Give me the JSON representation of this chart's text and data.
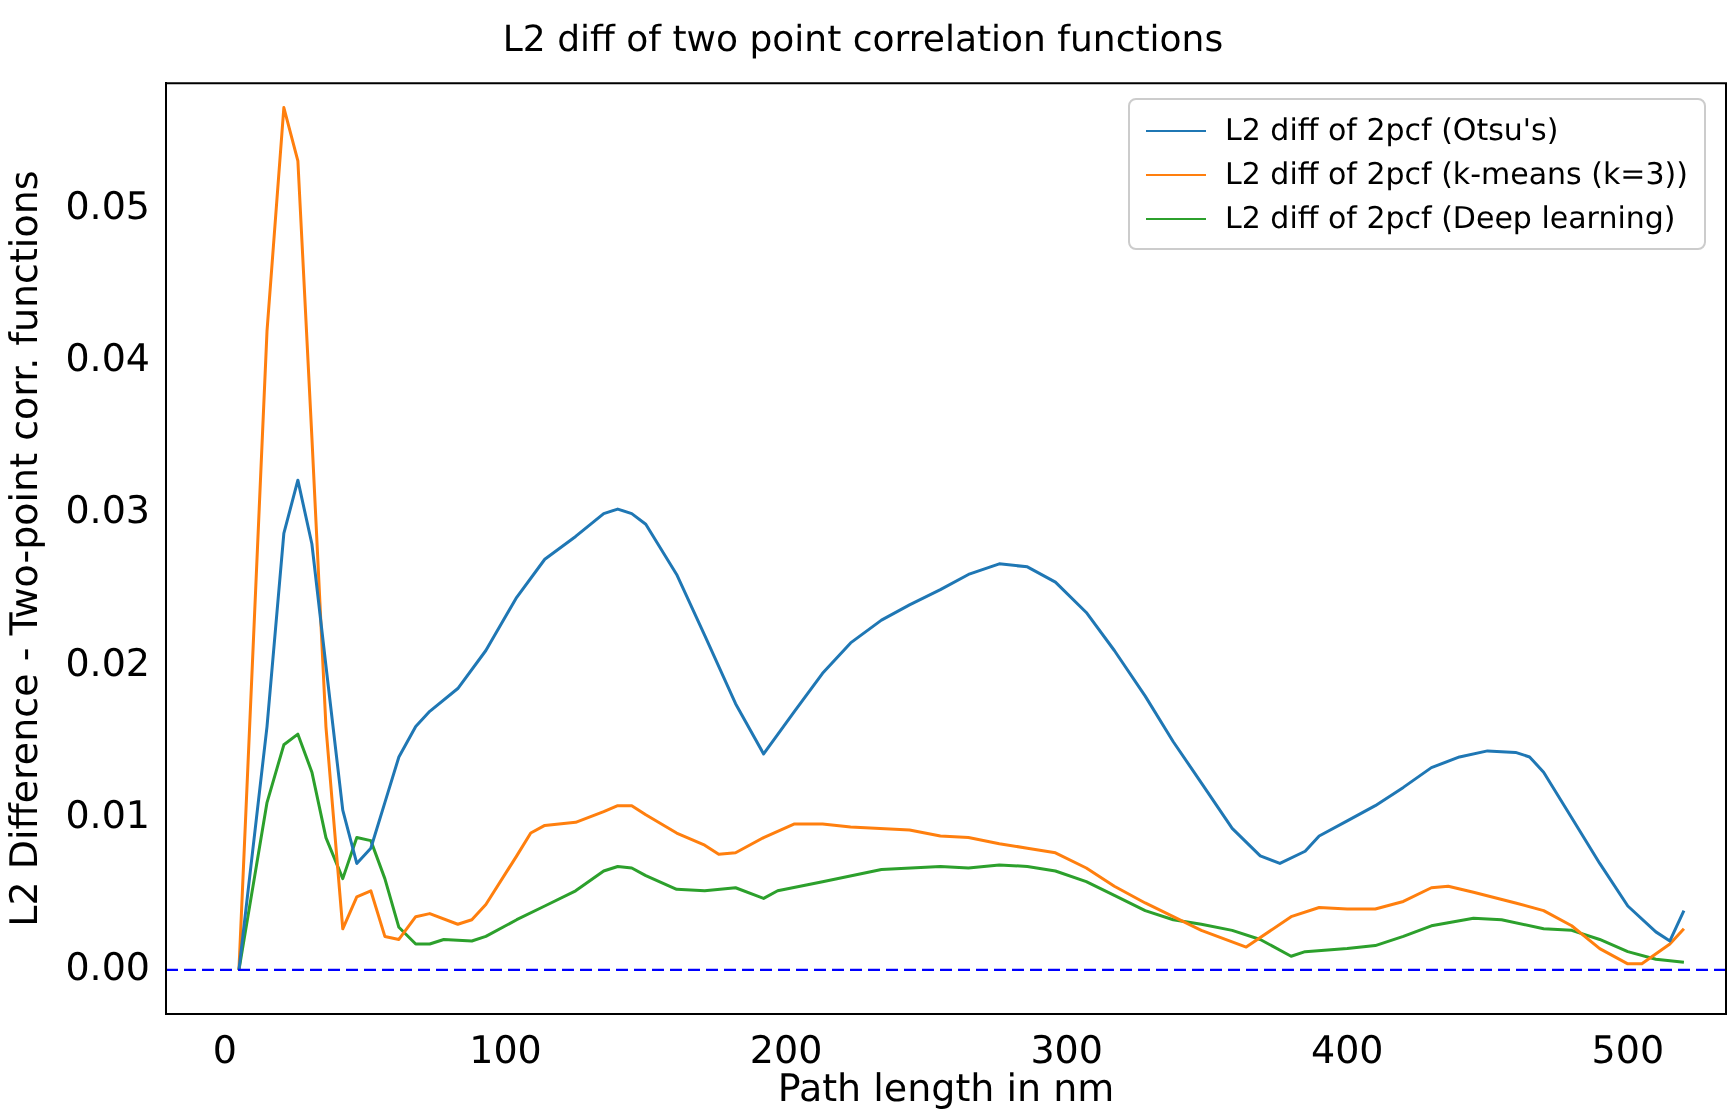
{
  "chart_data": {
    "type": "line",
    "title": "L2 diff of two point correlation functions",
    "xlabel": "Path length in nm",
    "ylabel": "L2 Difference - Two-point corr. functions",
    "xlim": [
      -21,
      535
    ],
    "xticks": [
      0,
      100,
      200,
      300,
      400,
      500
    ],
    "ylim": [
      -0.0029,
      0.0583
    ],
    "yticks": [
      {
        "value": 0,
        "label": "0.00"
      },
      {
        "value": 0.01,
        "label": "0.01"
      },
      {
        "value": 0.02,
        "label": "0.02"
      },
      {
        "value": 0.03,
        "label": "0.03"
      },
      {
        "value": 0.04,
        "label": "0.04"
      },
      {
        "value": 0.05,
        "label": "0.05"
      }
    ],
    "legend": "top right",
    "marker": "none",
    "line_style": "solid",
    "grid": false,
    "ref_lines": [
      {
        "axis": "y",
        "value": 0,
        "color": "#0000ff",
        "line_style": "dashed"
      }
    ],
    "series": [
      {
        "name": "L2 diff of 2pcf (Otsu's)",
        "color": "#1f77b4",
        "x": [
          5,
          15,
          21,
          26,
          31,
          36,
          42,
          47,
          52,
          57,
          62,
          68,
          73,
          83,
          93,
          104,
          114,
          125,
          135,
          140,
          145,
          150,
          161,
          171,
          182,
          192,
          203,
          213,
          223,
          234,
          244,
          255,
          265,
          276,
          286,
          296,
          307,
          317,
          328,
          338,
          348,
          359,
          369,
          376,
          385,
          390,
          400,
          410,
          420,
          430,
          440,
          450,
          460,
          465,
          470,
          480,
          490,
          500,
          510,
          515,
          520
        ],
        "values": [
          0,
          0.016,
          0.0287,
          0.0322,
          0.028,
          0.02,
          0.0105,
          0.007,
          0.008,
          0.011,
          0.014,
          0.016,
          0.017,
          0.0185,
          0.021,
          0.0245,
          0.027,
          0.0285,
          0.03,
          0.0303,
          0.03,
          0.0293,
          0.026,
          0.022,
          0.0175,
          0.0142,
          0.017,
          0.0195,
          0.0215,
          0.023,
          0.024,
          0.025,
          0.026,
          0.0267,
          0.0265,
          0.0255,
          0.0235,
          0.021,
          0.018,
          0.015,
          0.0123,
          0.0093,
          0.0075,
          0.007,
          0.0078,
          0.0088,
          0.0098,
          0.0108,
          0.012,
          0.0133,
          0.014,
          0.0144,
          0.0143,
          0.014,
          0.013,
          0.01,
          0.007,
          0.0042,
          0.0025,
          0.0019,
          0.0039
        ]
      },
      {
        "name": "L2 diff of 2pcf (k-means (k=3))",
        "color": "#ff7f0e",
        "x": [
          5,
          15,
          21,
          26,
          31,
          36,
          42,
          47,
          52,
          57,
          62,
          68,
          73,
          83,
          88,
          93,
          104,
          109,
          114,
          125,
          135,
          140,
          145,
          150,
          161,
          171,
          176,
          182,
          192,
          203,
          213,
          223,
          244,
          255,
          265,
          276,
          286,
          296,
          307,
          317,
          328,
          348,
          364,
          380,
          390,
          400,
          410,
          420,
          430,
          436,
          445,
          460,
          470,
          480,
          490,
          500,
          505,
          515,
          520
        ],
        "values": [
          0,
          0.042,
          0.0567,
          0.0532,
          0.035,
          0.016,
          0.0027,
          0.0048,
          0.0052,
          0.0022,
          0.002,
          0.0035,
          0.0037,
          0.003,
          0.0033,
          0.0043,
          0.0075,
          0.009,
          0.0095,
          0.0097,
          0.0104,
          0.0108,
          0.0108,
          0.0102,
          0.009,
          0.0082,
          0.0076,
          0.0077,
          0.0087,
          0.0096,
          0.0096,
          0.0094,
          0.0092,
          0.0088,
          0.0087,
          0.0083,
          0.008,
          0.0077,
          0.0067,
          0.0055,
          0.0044,
          0.0026,
          0.0015,
          0.0035,
          0.0041,
          0.004,
          0.004,
          0.0045,
          0.0054,
          0.0055,
          0.0051,
          0.0044,
          0.0039,
          0.0029,
          0.0014,
          0.0004,
          0.0004,
          0.0017,
          0.0027
        ]
      },
      {
        "name": "L2 diff of 2pcf (Deep learning)",
        "color": "#2ca02c",
        "x": [
          5,
          15,
          21,
          26,
          31,
          36,
          42,
          47,
          52,
          57,
          62,
          68,
          73,
          78,
          88,
          93,
          104,
          114,
          125,
          135,
          140,
          145,
          150,
          161,
          171,
          182,
          192,
          197,
          213,
          234,
          255,
          265,
          276,
          286,
          296,
          307,
          317,
          328,
          338,
          348,
          359,
          369,
          380,
          385,
          400,
          410,
          420,
          430,
          445,
          455,
          470,
          480,
          490,
          500,
          510,
          520
        ],
        "values": [
          0,
          0.011,
          0.0148,
          0.0155,
          0.013,
          0.0087,
          0.006,
          0.0087,
          0.0085,
          0.006,
          0.0028,
          0.0017,
          0.0017,
          0.002,
          0.0019,
          0.0022,
          0.0033,
          0.0042,
          0.0052,
          0.0065,
          0.0068,
          0.0067,
          0.0062,
          0.0053,
          0.0052,
          0.0054,
          0.0047,
          0.0052,
          0.0058,
          0.0066,
          0.0068,
          0.0067,
          0.0069,
          0.0068,
          0.0065,
          0.0058,
          0.0049,
          0.0039,
          0.0033,
          0.003,
          0.0026,
          0.002,
          0.0009,
          0.0012,
          0.0014,
          0.0016,
          0.0022,
          0.0029,
          0.0034,
          0.0033,
          0.0027,
          0.0026,
          0.002,
          0.0012,
          0.0007,
          0.0005
        ]
      }
    ]
  }
}
